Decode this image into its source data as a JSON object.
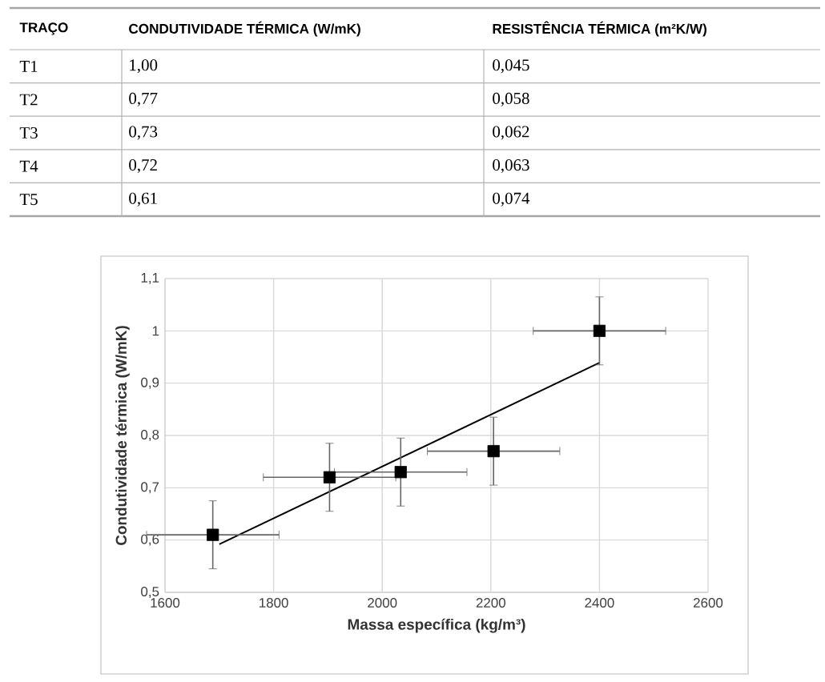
{
  "chart_data": [
    {
      "type": "other",
      "annotations": [
        "TRAÇO",
        "CONDUTIVIDADE TÉRMICA (W/mK)",
        "RESISTÊNCIA TÉRMICA (m²K/W)",
        "T1",
        "1,00",
        "0,045",
        "T2",
        "0,77",
        "0,058",
        "T3",
        "0,73",
        "0,062",
        "T4",
        "0,72",
        "0,063",
        "T5",
        "0,61",
        "0,074"
      ]
    },
    {
      "type": "scatter",
      "xlabel": "Massa específica (kg/m³)",
      "ylabel": "Condutividade térmica (W/mK)",
      "xlim": [
        1600,
        2600
      ],
      "xticks": [
        1600,
        1800,
        2000,
        2200,
        2400,
        2600
      ],
      "ylim": [
        0.5,
        1.1
      ],
      "yticks": [
        {
          "value": 0.5,
          "label": "0,5"
        },
        {
          "value": 0.6,
          "label": "0,6"
        },
        {
          "value": 0.7,
          "label": "0,7"
        },
        {
          "value": 0.8,
          "label": "0,8"
        },
        {
          "value": 0.9,
          "label": "0,9"
        },
        {
          "value": 1,
          "label": "1"
        },
        {
          "value": 1.1,
          "label": "1,1"
        }
      ],
      "grid": true,
      "marker": "square",
      "series": [
        {
          "type": "scatter",
          "color": "#000000",
          "x": [
            1688,
            1903,
            2034,
            2205,
            2400
          ],
          "values": [
            0.61,
            0.72,
            0.73,
            0.77,
            1.0
          ],
          "errors": [
            0.065,
            0.065,
            0.065,
            0.065,
            0.065
          ],
          "xerrors": [
            122,
            122,
            122,
            122,
            122
          ]
        },
        {
          "type": "line",
          "color": "#000000",
          "marker": "none",
          "x": [
            1700,
            2400
          ],
          "values": [
            0.592,
            0.939
          ]
        }
      ]
    }
  ]
}
